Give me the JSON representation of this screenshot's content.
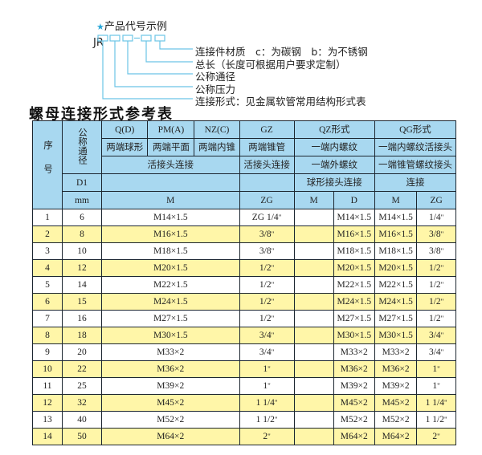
{
  "code_example": {
    "title": "产品代号示例",
    "prefix": "JR",
    "labels": [
      "连接件材质　c：为碳钢　b：为不锈钢",
      "总长（长度可根据用户要求定制）",
      "公称通径",
      "公称压力",
      "连接形式：见金属软管常用结构形式表"
    ],
    "accent": "#2aa7d8"
  },
  "table_title": "螺母连接形式参考表",
  "header": {
    "seq": "序号",
    "dn": "公称通径",
    "qd": "Q(D)",
    "pma": "PM(A)",
    "nzc": "NZ(C)",
    "gz": "GZ",
    "qz": "QZ形式",
    "qg": "QG形式",
    "qd2": "两端球形",
    "pma2": "两端平面",
    "nzc2": "两端内锥",
    "gz2": "两端锥管",
    "qz2": "一端内螺纹",
    "qg2": "一端内螺纹活接头",
    "m3": "活接头连接",
    "gz3": "活接头连接",
    "qz3": "一端外螺纹",
    "qg3": "一端锥管螺纹接头",
    "d1": "D1",
    "qz4": "球形接头连接",
    "qg4": "连接",
    "mm": "mm",
    "m": "M",
    "zg": "ZG",
    "qzm": "M",
    "qzd": "D",
    "qgm": "M",
    "qgzg": "ZG"
  },
  "header_color": "#a8d8f0",
  "stripe_color": "#fff6a8",
  "rows": [
    {
      "no": "1",
      "dn": "6",
      "m": "M14×1.5",
      "gz": "ZG 1/4",
      "qzm": "",
      "qzd": "M14×1.5",
      "qgm": "M14×1.5",
      "qgzg": "1/4"
    },
    {
      "no": "2",
      "dn": "8",
      "m": "M16×1.5",
      "gz": "3/8",
      "qzm": "",
      "qzd": "M16×1.5",
      "qgm": "M16×1.5",
      "qgzg": "3/8"
    },
    {
      "no": "3",
      "dn": "10",
      "m": "M18×1.5",
      "gz": "3/8",
      "qzm": "",
      "qzd": "M18×1.5",
      "qgm": "M18×1.5",
      "qgzg": "3/8"
    },
    {
      "no": "4",
      "dn": "12",
      "m": "M20×1.5",
      "gz": "1/2",
      "qzm": "",
      "qzd": "M20×1.5",
      "qgm": "M20×1.5",
      "qgzg": "1/2"
    },
    {
      "no": "5",
      "dn": "14",
      "m": "M22×1.5",
      "gz": "1/2",
      "qzm": "",
      "qzd": "M22×1.5",
      "qgm": "M22×1.5",
      "qgzg": "1/2"
    },
    {
      "no": "6",
      "dn": "15",
      "m": "M24×1.5",
      "gz": "1/2",
      "qzm": "",
      "qzd": "M24×1.5",
      "qgm": "M24×1.5",
      "qgzg": "1/2"
    },
    {
      "no": "7",
      "dn": "16",
      "m": "M27×1.5",
      "gz": "1/2",
      "qzm": "",
      "qzd": "M27×1.5",
      "qgm": "M27×1.5",
      "qgzg": "1/2"
    },
    {
      "no": "8",
      "dn": "18",
      "m": "M30×1.5",
      "gz": "3/4",
      "qzm": "",
      "qzd": "M30×1.5",
      "qgm": "M30×1.5",
      "qgzg": "3/4"
    },
    {
      "no": "9",
      "dn": "20",
      "m": "M33×2",
      "gz": "3/4",
      "qzm": "",
      "qzd": "M33×2",
      "qgm": "M33×2",
      "qgzg": "3/4"
    },
    {
      "no": "10",
      "dn": "22",
      "m": "M36×2",
      "gz": "1",
      "qzm": "",
      "qzd": "M36×2",
      "qgm": "M36×2",
      "qgzg": "1"
    },
    {
      "no": "11",
      "dn": "25",
      "m": "M39×2",
      "gz": "1",
      "qzm": "",
      "qzd": "M39×2",
      "qgm": "M39×2",
      "qgzg": "1"
    },
    {
      "no": "12",
      "dn": "32",
      "m": "M45×2",
      "gz": "1 1/4",
      "qzm": "",
      "qzd": "M45×2",
      "qgm": "M45×2",
      "qgzg": "1 1/4"
    },
    {
      "no": "13",
      "dn": "40",
      "m": "M52×2",
      "gz": "1 1/2",
      "qzm": "",
      "qzd": "M52×2",
      "qgm": "M52×2",
      "qgzg": "1 1/2"
    },
    {
      "no": "14",
      "dn": "50",
      "m": "M64×2",
      "gz": "2",
      "qzm": "",
      "qzd": "M64×2",
      "qgm": "M64×2",
      "qgzg": "2"
    }
  ]
}
